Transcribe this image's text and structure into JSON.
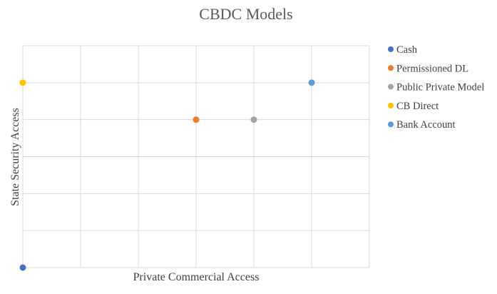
{
  "chart_data": {
    "type": "scatter",
    "title": "CBDC Models",
    "xlabel": "Private Commercial Access",
    "ylabel": "State Security Access",
    "xlim": [
      0,
      6
    ],
    "ylim": [
      0,
      6
    ],
    "grid": true,
    "legend_position": "right",
    "series": [
      {
        "name": "Cash",
        "color": "#4472C4",
        "points": [
          {
            "x": 0,
            "y": 0
          }
        ]
      },
      {
        "name": "Permissioned DL",
        "color": "#ED7D31",
        "points": [
          {
            "x": 3,
            "y": 4
          }
        ]
      },
      {
        "name": "Public Private Model",
        "color": "#A5A5A5",
        "points": [
          {
            "x": 4,
            "y": 4
          }
        ]
      },
      {
        "name": "CB Direct",
        "color": "#FFC000",
        "points": [
          {
            "x": 0,
            "y": 5
          }
        ]
      },
      {
        "name": "Bank Account",
        "color": "#5B9BD5",
        "points": [
          {
            "x": 5,
            "y": 5
          }
        ]
      }
    ]
  }
}
